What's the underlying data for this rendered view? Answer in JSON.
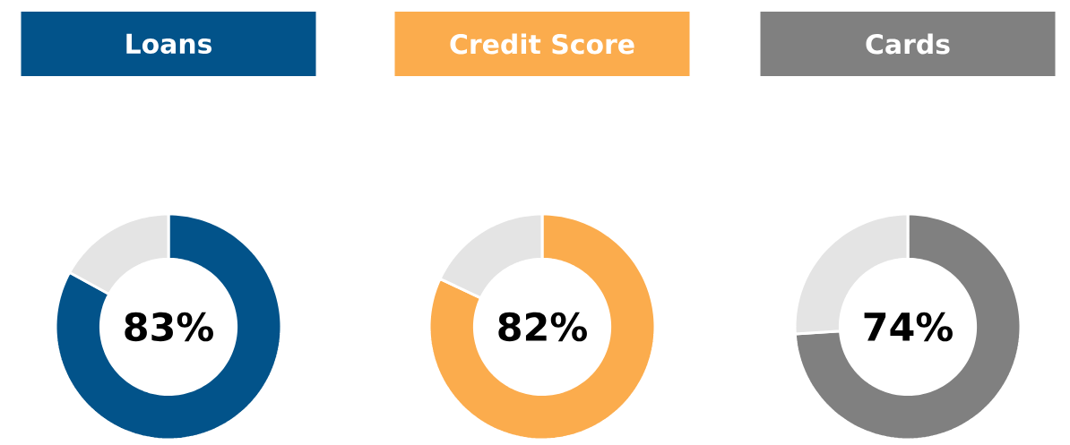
{
  "chart_data": [
    {
      "type": "donut",
      "title": "Loans",
      "categories": [
        null,
        null
      ],
      "values": [
        83,
        17
      ],
      "colors": [
        "#02538a",
        "#e4e4e4"
      ],
      "value_labels": [
        "83%",
        null
      ]
    },
    {
      "type": "donut",
      "title": "Credit Score",
      "categories": [
        null,
        null
      ],
      "values": [
        82,
        18
      ],
      "colors": [
        "#fbac4d",
        "#e4e4e4"
      ],
      "value_labels": [
        "82%",
        null
      ]
    },
    {
      "type": "donut",
      "title": "Cards",
      "categories": [
        null,
        null
      ],
      "values": [
        74,
        26
      ],
      "colors": [
        "#808080",
        "#e4e4e4"
      ],
      "value_labels": [
        "74%",
        null
      ]
    }
  ]
}
